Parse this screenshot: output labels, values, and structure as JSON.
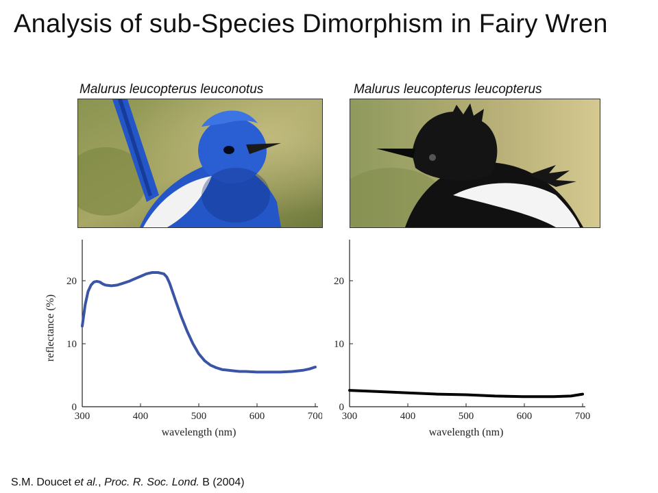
{
  "slide": {
    "title": "Analysis of sub-Species Dimorphism in Fairy Wren"
  },
  "photos": [
    {
      "caption": "Malurus leucopterus leuconotus",
      "plumage_color": "#2456c8"
    },
    {
      "caption": "Malurus leucopterus leucopterus",
      "plumage_color": "#111111"
    }
  ],
  "citation": {
    "authors": "S.M. Doucet ",
    "etal": "et al.",
    "sep": ", ",
    "journal": "Proc. R. Soc. Lond.",
    "rest": " B (2004)"
  },
  "chart_data": [
    {
      "type": "line",
      "xlabel": "wavelength (nm)",
      "ylabel": "reflectance (%)",
      "xlim": [
        300,
        700
      ],
      "ylim": [
        0,
        25
      ],
      "xticks": [
        300,
        400,
        500,
        600,
        700
      ],
      "yticks": [
        0,
        10,
        20
      ],
      "grid": false,
      "series": [
        {
          "color": "#3a54a6",
          "x": [
            300,
            305,
            310,
            315,
            320,
            325,
            330,
            335,
            340,
            350,
            360,
            370,
            380,
            390,
            400,
            410,
            420,
            430,
            440,
            445,
            450,
            460,
            470,
            480,
            490,
            500,
            510,
            520,
            530,
            540,
            550,
            560,
            570,
            580,
            600,
            620,
            640,
            660,
            680,
            690,
            700
          ],
          "y": [
            12.8,
            16.2,
            18.3,
            19.3,
            19.8,
            19.9,
            19.8,
            19.5,
            19.3,
            19.2,
            19.3,
            19.6,
            19.9,
            20.3,
            20.7,
            21.1,
            21.3,
            21.3,
            21.1,
            20.6,
            19.6,
            16.9,
            14.3,
            12.0,
            10.0,
            8.4,
            7.3,
            6.6,
            6.2,
            5.9,
            5.8,
            5.7,
            5.6,
            5.6,
            5.5,
            5.5,
            5.5,
            5.6,
            5.8,
            6.0,
            6.3
          ]
        }
      ]
    },
    {
      "type": "line",
      "xlabel": "wavelength (nm)",
      "ylabel": "",
      "xlim": [
        300,
        700
      ],
      "ylim": [
        0,
        25
      ],
      "xticks": [
        300,
        400,
        500,
        600,
        700
      ],
      "yticks": [
        0,
        10,
        20
      ],
      "grid": false,
      "series": [
        {
          "color": "#000000",
          "x": [
            300,
            350,
            400,
            450,
            500,
            550,
            600,
            650,
            680,
            700
          ],
          "y": [
            2.6,
            2.4,
            2.2,
            2.0,
            1.9,
            1.7,
            1.6,
            1.6,
            1.7,
            2.0
          ]
        }
      ]
    }
  ]
}
